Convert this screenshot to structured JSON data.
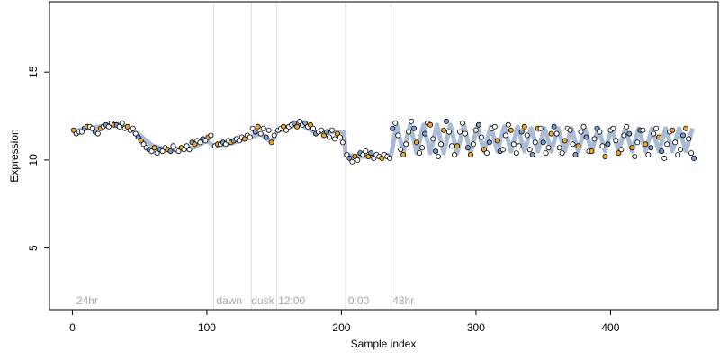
{
  "chart_data": {
    "type": "scatter",
    "title": "",
    "xlabel": "Sample index",
    "ylabel": "Expression",
    "xlim": [
      -17,
      480
    ],
    "ylim": [
      1.5,
      19.0
    ],
    "xticks": [
      0,
      100,
      200,
      300,
      400
    ],
    "yticks": [
      5,
      10,
      15
    ],
    "grid": false,
    "annotations": [
      {
        "label": "24hr",
        "x": 3
      },
      {
        "label": "dawn",
        "x": 107
      },
      {
        "label": "dusk",
        "x": 133
      },
      {
        "label": "12:00",
        "x": 153
      },
      {
        "label": "0:00",
        "x": 205
      },
      {
        "label": "48hr",
        "x": 238
      }
    ],
    "dividers": [
      105,
      133,
      152,
      203,
      237
    ],
    "annotation_y": 2.0,
    "colors": {
      "orange": "#f5a623",
      "blue": "#7b9fd3",
      "fit_line": "#9bb0cc",
      "divider": "#dedede",
      "annotation_text": "#a8a8a8"
    },
    "fit_line": {
      "name": "",
      "x": [
        0,
        10,
        20,
        30,
        40,
        50,
        60,
        70,
        80,
        90,
        100,
        105,
        115,
        125,
        133,
        140,
        148,
        152,
        160,
        170,
        180,
        190,
        202,
        203,
        215,
        225,
        237,
        241,
        246,
        251,
        256,
        261,
        266,
        271,
        276,
        281,
        286,
        291,
        296,
        301,
        306,
        311,
        316,
        321,
        326,
        331,
        336,
        341,
        346,
        351,
        356,
        361,
        366,
        371,
        376,
        381,
        386,
        391,
        396,
        401,
        406,
        411,
        416,
        421,
        426,
        431,
        436,
        441,
        446,
        451,
        456,
        461
      ],
      "y": [
        11.6,
        11.8,
        11.9,
        12.0,
        11.9,
        11.4,
        10.8,
        10.6,
        10.6,
        10.7,
        11.1,
        10.8,
        10.9,
        11.1,
        11.3,
        11.5,
        11.0,
        11.6,
        11.9,
        12.0,
        11.6,
        11.6,
        11.6,
        10.3,
        10.2,
        10.2,
        10.3,
        12.0,
        10.4,
        12.0,
        10.4,
        12.0,
        10.4,
        12.0,
        10.4,
        12.0,
        10.4,
        12.0,
        10.4,
        11.9,
        10.5,
        11.9,
        10.5,
        11.9,
        10.5,
        11.9,
        10.5,
        11.8,
        10.5,
        11.8,
        10.5,
        11.8,
        10.5,
        11.8,
        10.5,
        11.8,
        10.5,
        11.8,
        10.5,
        11.8,
        10.5,
        11.8,
        10.5,
        11.8,
        10.5,
        11.8,
        10.5,
        11.8,
        10.5,
        11.8,
        10.5,
        11.8
      ]
    },
    "series": [
      {
        "x": [
          1,
          3,
          5,
          7,
          9,
          11,
          13,
          15,
          17,
          19,
          21,
          23,
          25,
          27,
          29,
          31,
          33,
          35,
          37,
          39,
          41,
          43,
          45,
          47,
          49,
          51,
          53,
          55,
          57,
          59,
          61,
          63,
          65,
          67,
          69,
          71,
          73,
          75,
          77,
          79,
          81,
          83,
          85,
          87,
          89,
          91,
          93,
          95,
          97,
          99,
          101,
          103
        ],
        "y": [
          11.7,
          11.5,
          11.6,
          11.6,
          11.8,
          11.9,
          11.9,
          11.8,
          11.6,
          11.5,
          11.8,
          11.9,
          12.0,
          11.9,
          12.1,
          12.0,
          12.0,
          11.9,
          12.1,
          11.8,
          11.9,
          11.7,
          11.8,
          11.5,
          11.3,
          11.1,
          10.9,
          10.7,
          10.6,
          10.5,
          10.7,
          10.4,
          10.6,
          10.5,
          10.7,
          10.6,
          10.5,
          10.8,
          10.6,
          10.5,
          10.7,
          10.6,
          10.8,
          10.6,
          11.0,
          10.9,
          11.1,
          11.0,
          11.2,
          11.1,
          11.3,
          11.4
        ]
      },
      {
        "x": [
          106,
          108,
          110,
          112,
          114,
          116,
          118,
          120,
          122,
          124,
          126,
          128,
          130,
          132,
          134,
          136,
          138,
          140,
          142,
          144,
          146,
          148,
          150
        ],
        "y": [
          10.8,
          10.9,
          10.9,
          11.0,
          10.9,
          11.1,
          11.0,
          11.1,
          11.2,
          11.1,
          11.3,
          11.2,
          11.4,
          11.3,
          11.8,
          11.6,
          11.9,
          11.5,
          11.8,
          11.3,
          11.7,
          11.0,
          11.4
        ]
      },
      {
        "x": [
          153,
          155,
          157,
          159,
          161,
          163,
          165,
          167,
          169,
          171,
          173,
          175,
          177,
          179,
          181,
          183,
          185,
          187,
          189,
          191,
          193,
          195,
          197,
          199,
          201
        ],
        "y": [
          11.7,
          11.8,
          11.9,
          11.7,
          11.9,
          12.0,
          12.1,
          11.9,
          12.2,
          12.0,
          12.1,
          11.9,
          12.0,
          11.8,
          11.5,
          11.6,
          11.7,
          11.4,
          11.6,
          11.3,
          11.7,
          11.2,
          11.5,
          11.3,
          11.0
        ]
      },
      {
        "x": [
          204,
          206,
          208,
          210,
          212,
          214,
          216,
          218,
          220,
          222,
          224,
          226,
          228,
          230,
          232,
          234,
          236
        ],
        "y": [
          10.3,
          10.1,
          9.9,
          10.2,
          10.0,
          10.4,
          10.3,
          10.5,
          10.2,
          10.4,
          10.1,
          10.3,
          10.2,
          10.1,
          10.3,
          10.2,
          10.1
        ]
      },
      {
        "x": [
          238,
          240,
          242,
          244,
          246,
          248,
          250,
          252,
          254,
          256,
          258,
          260,
          262,
          264,
          266,
          268,
          270,
          272,
          274,
          276,
          278,
          280,
          282,
          284,
          286,
          288,
          290,
          292,
          294,
          296,
          298,
          300,
          302,
          304,
          306,
          308,
          310,
          312,
          314,
          316,
          318,
          320,
          322,
          324,
          326,
          328,
          330,
          332,
          334,
          336,
          338,
          340,
          342,
          344,
          346,
          348,
          350,
          352,
          354,
          356,
          358,
          360,
          362,
          364,
          366,
          368,
          370,
          372,
          374,
          376,
          378,
          380,
          382,
          384,
          386,
          388,
          390,
          392,
          394,
          396,
          398,
          400,
          402,
          404,
          406,
          408,
          410,
          412,
          414,
          416,
          418,
          420,
          422,
          424,
          426,
          428,
          430,
          432,
          434,
          436,
          438,
          440,
          442,
          444,
          446,
          448,
          450,
          452,
          454,
          456,
          458,
          460,
          462
        ],
        "y": [
          11.8,
          12.1,
          11.4,
          10.6,
          10.3,
          10.9,
          11.6,
          12.2,
          11.8,
          11.0,
          10.4,
          10.7,
          11.5,
          12.1,
          12.0,
          11.2,
          10.5,
          10.2,
          10.9,
          11.7,
          12.2,
          11.6,
          10.8,
          10.3,
          10.8,
          11.6,
          12.1,
          11.5,
          10.7,
          10.3,
          10.9,
          11.7,
          12.0,
          11.3,
          10.6,
          10.4,
          11.0,
          11.8,
          11.9,
          11.1,
          10.5,
          10.6,
          11.4,
          12.0,
          11.7,
          10.9,
          10.4,
          10.8,
          11.6,
          11.9,
          11.4,
          10.6,
          10.3,
          11.0,
          11.8,
          11.8,
          11.0,
          10.4,
          10.7,
          11.5,
          11.9,
          11.5,
          10.7,
          10.4,
          11.1,
          11.8,
          11.7,
          10.9,
          10.3,
          10.8,
          11.6,
          11.9,
          11.3,
          10.5,
          10.5,
          11.2,
          11.8,
          11.6,
          10.8,
          10.2,
          10.9,
          11.7,
          11.8,
          11.1,
          10.4,
          10.6,
          11.4,
          11.9,
          11.5,
          10.7,
          10.2,
          11.0,
          11.7,
          11.7,
          10.9,
          10.3,
          10.7,
          11.5,
          11.8,
          11.3,
          10.5,
          10.1,
          10.9,
          11.6,
          11.7,
          11.0,
          10.3,
          10.6,
          11.4,
          11.8,
          11.2,
          10.4,
          10.1
        ]
      }
    ]
  }
}
